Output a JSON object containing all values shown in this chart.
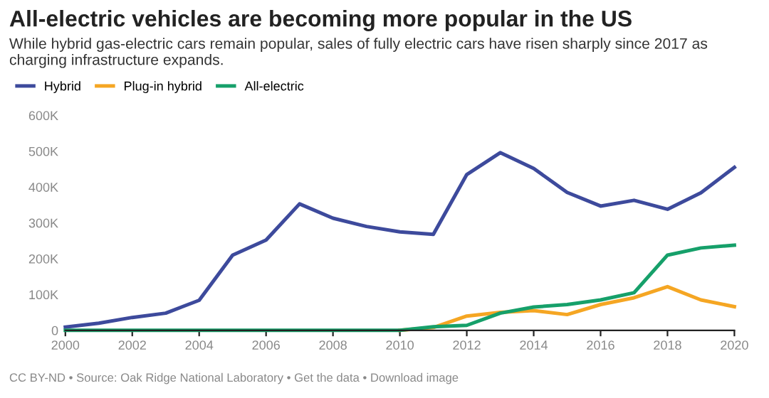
{
  "chart_data": {
    "type": "line",
    "title": "All-electric vehicles are becoming more popular in the US",
    "subtitle": "While hybrid gas-electric cars remain popular, sales of fully electric cars have risen sharply since 2017 as charging infrastructure expands.",
    "x": [
      2000,
      2001,
      2002,
      2003,
      2004,
      2005,
      2006,
      2007,
      2008,
      2009,
      2010,
      2011,
      2012,
      2013,
      2014,
      2015,
      2016,
      2017,
      2018,
      2019,
      2020
    ],
    "series": [
      {
        "name": "Hybrid",
        "color": "#3d4a9c",
        "values": [
          9000,
          20000,
          36000,
          48000,
          84000,
          210000,
          252000,
          353000,
          313000,
          290000,
          275000,
          268000,
          435000,
          496000,
          452000,
          385000,
          347000,
          363000,
          338000,
          384000,
          455000
        ]
      },
      {
        "name": "Plug-in hybrid",
        "color": "#f5a623",
        "values": [
          null,
          null,
          null,
          null,
          null,
          null,
          null,
          null,
          null,
          null,
          0,
          8000,
          40000,
          50000,
          55000,
          44000,
          72000,
          91000,
          122000,
          85000,
          66000
        ]
      },
      {
        "name": "All-electric",
        "color": "#16a06a",
        "values": [
          0,
          0,
          0,
          0,
          0,
          0,
          0,
          0,
          0,
          0,
          0,
          10000,
          14000,
          48000,
          65000,
          72000,
          85000,
          105000,
          210000,
          230000,
          238000
        ]
      }
    ],
    "xlim": [
      2000,
      2020
    ],
    "xticks": [
      2000,
      2002,
      2004,
      2006,
      2008,
      2010,
      2012,
      2014,
      2016,
      2018,
      2020
    ],
    "ylim": [
      0,
      600000
    ],
    "yticks": [
      {
        "value": 0,
        "label": "0"
      },
      {
        "value": 100000,
        "label": "100K"
      },
      {
        "value": 200000,
        "label": "200K"
      },
      {
        "value": 300000,
        "label": "300K"
      },
      {
        "value": 400000,
        "label": "400K"
      },
      {
        "value": 500000,
        "label": "500K"
      },
      {
        "value": 600000,
        "label": "600K"
      }
    ],
    "grid": false,
    "legend": "top left",
    "annotations": [
      "CC BY-ND • Source: Oak Ridge National Laboratory • Get the data • Download image"
    ]
  }
}
